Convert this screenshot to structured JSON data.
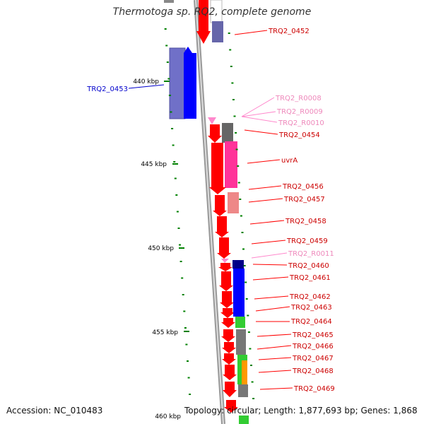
{
  "title": "Thermotoga sp. RQ2, complete genome",
  "footer": {
    "accession": "Accession: NC_010483",
    "summary": "Topology: circular; Length: 1,877,693 bp; Genes: 1,868"
  },
  "scale": {
    "ticks": [
      "440 kbp",
      "445 kbp",
      "450 kbp",
      "455 kbp",
      "460 kbp"
    ]
  },
  "genes": [
    {
      "label": "TRQ2_0452",
      "color": "#cc0000"
    },
    {
      "label": "TRQ2_0453",
      "color": "#0000cc"
    },
    {
      "label": "TRQ2_R0008",
      "color": "#ee88bb"
    },
    {
      "label": "TRQ2_R0009",
      "color": "#ee88bb"
    },
    {
      "label": "TRQ2_R0010",
      "color": "#ee88bb"
    },
    {
      "label": "TRQ2_0454",
      "color": "#cc0000"
    },
    {
      "label": "uvrA",
      "color": "#cc0000"
    },
    {
      "label": "TRQ2_0456",
      "color": "#cc0000"
    },
    {
      "label": "TRQ2_0457",
      "color": "#cc0000"
    },
    {
      "label": "TRQ2_0458",
      "color": "#cc0000"
    },
    {
      "label": "TRQ2_0459",
      "color": "#cc0000"
    },
    {
      "label": "TRQ2_R0011",
      "color": "#ee88bb"
    },
    {
      "label": "TRQ2_0460",
      "color": "#cc0000"
    },
    {
      "label": "TRQ2_0461",
      "color": "#cc0000"
    },
    {
      "label": "TRQ2_0462",
      "color": "#cc0000"
    },
    {
      "label": "TRQ2_0463",
      "color": "#cc0000"
    },
    {
      "label": "TRQ2_0464",
      "color": "#cc0000"
    },
    {
      "label": "TRQ2_0465",
      "color": "#cc0000"
    },
    {
      "label": "TRQ2_0466",
      "color": "#cc0000"
    },
    {
      "label": "TRQ2_0467",
      "color": "#cc0000"
    },
    {
      "label": "TRQ2_0468",
      "color": "#cc0000"
    },
    {
      "label": "TRQ2_0469",
      "color": "#cc0000"
    }
  ]
}
